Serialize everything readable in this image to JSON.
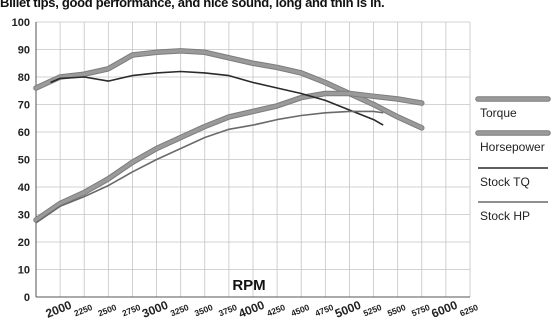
{
  "chart_data": {
    "type": "line",
    "title": "Billet tips, good performance, and nice sound, long and thin is in.",
    "xlabel": "RPM",
    "ylabel": "",
    "xlim": [
      1750,
      6250
    ],
    "ylim": [
      0,
      100
    ],
    "grid": true,
    "legend_position": "right",
    "y_ticks": [
      0,
      10,
      20,
      30,
      40,
      50,
      60,
      70,
      80,
      90,
      100
    ],
    "x_ticks": [
      2000,
      2250,
      2500,
      2750,
      3000,
      3250,
      3500,
      3750,
      4000,
      4250,
      4500,
      4750,
      5000,
      5250,
      5500,
      5750,
      6000,
      6250
    ],
    "major_x_ticks": [
      2000,
      3000,
      4000,
      5000,
      6000
    ],
    "series": [
      {
        "name": "Torque",
        "color": "#9a9a9a",
        "style": "thick",
        "x": [
          1750,
          2000,
          2250,
          2500,
          2750,
          3000,
          3250,
          3500,
          3750,
          4000,
          4250,
          4500,
          4750,
          5000,
          5250,
          5500,
          5750
        ],
        "y": [
          76,
          80,
          81,
          83,
          88,
          89,
          89.5,
          89,
          87,
          85,
          83.5,
          81.5,
          78,
          74,
          70,
          65.5,
          61.5
        ]
      },
      {
        "name": "Horsepower",
        "color": "#9a9a9a",
        "style": "thick",
        "x": [
          1750,
          2000,
          2250,
          2500,
          2750,
          3000,
          3250,
          3500,
          3750,
          4000,
          4250,
          4500,
          4750,
          5000,
          5250,
          5500,
          5750
        ],
        "y": [
          28,
          34,
          38,
          43,
          49,
          54,
          58,
          62,
          65.5,
          67.5,
          69.5,
          72.5,
          74,
          74,
          73,
          72,
          70.5
        ]
      },
      {
        "name": "Stock TQ",
        "color": "#2a2a2a",
        "style": "thin",
        "x": [
          1900,
          2000,
          2250,
          2500,
          2750,
          3000,
          3250,
          3500,
          3750,
          4000,
          4250,
          4500,
          4750,
          5000,
          5250,
          5350
        ],
        "y": [
          78,
          79.5,
          80,
          78.5,
          80.5,
          81.5,
          82,
          81.5,
          80.5,
          78,
          76,
          74,
          71.5,
          68,
          64.5,
          62.5
        ]
      },
      {
        "name": "Stock HP",
        "color": "#6a6a6a",
        "style": "thin",
        "x": [
          1750,
          2000,
          2250,
          2500,
          2750,
          3000,
          3250,
          3500,
          3750,
          4000,
          4250,
          4500,
          4750,
          5000,
          5250,
          5350
        ],
        "y": [
          27,
          33,
          36.5,
          40.5,
          45.5,
          50,
          54,
          58,
          61,
          62.5,
          64.5,
          66,
          67,
          67.5,
          67.5,
          67
        ]
      }
    ],
    "legend": [
      {
        "label": "Torque",
        "color": "#9a9a9a",
        "thick": true
      },
      {
        "label": "Horsepower",
        "color": "#9a9a9a",
        "thick": true
      },
      {
        "label": "Stock TQ",
        "color": "#2a2a2a",
        "thick": false
      },
      {
        "label": "Stock HP",
        "color": "#6a6a6a",
        "thick": false
      }
    ]
  }
}
